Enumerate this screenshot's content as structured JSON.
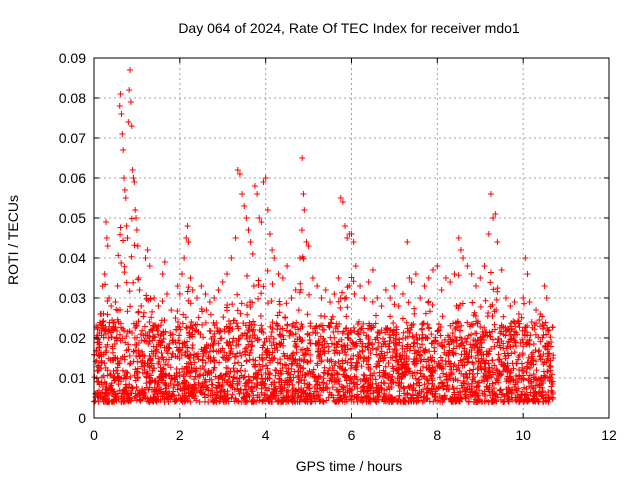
{
  "colors": {
    "series": "#ff0000",
    "grid": "#a0a0a0",
    "axis": "#000000",
    "background": "#ffffff"
  },
  "chart_data": {
    "type": "scatter",
    "title": "Day 064 of 2024, Rate Of TEC Index for receiver mdo1",
    "xlabel": "GPS time / hours",
    "ylabel": "ROTI / TECUs",
    "xlim": [
      0,
      12
    ],
    "ylim": [
      0,
      0.09
    ],
    "grid": true,
    "marker": "+",
    "x_ticks": [
      0,
      2,
      4,
      6,
      8,
      10,
      12
    ],
    "x_tick_labels": [
      "0",
      "2",
      "4",
      "6",
      "8",
      "10",
      "12"
    ],
    "y_ticks": [
      0,
      0.01,
      0.02,
      0.03,
      0.04,
      0.05,
      0.06,
      0.07,
      0.08,
      0.09
    ],
    "y_tick_labels": [
      "0",
      "0.01",
      "0.02",
      "0.03",
      "0.04",
      "0.05",
      "0.06",
      "0.07",
      "0.08",
      "0.09"
    ],
    "series": [
      {
        "name": "ROTI",
        "points": [
          [
            0.05,
            0.023
          ],
          [
            0.1,
            0.019
          ],
          [
            0.15,
            0.026
          ],
          [
            0.2,
            0.033
          ],
          [
            0.25,
            0.036
          ],
          [
            0.28,
            0.049
          ],
          [
            0.3,
            0.045
          ],
          [
            0.32,
            0.043
          ],
          [
            0.35,
            0.03
          ],
          [
            0.4,
            0.028
          ],
          [
            0.45,
            0.022
          ],
          [
            0.5,
            0.029
          ],
          [
            0.55,
            0.033
          ],
          [
            0.6,
            0.078
          ],
          [
            0.62,
            0.081
          ],
          [
            0.64,
            0.076
          ],
          [
            0.66,
            0.071
          ],
          [
            0.68,
            0.067
          ],
          [
            0.7,
            0.06
          ],
          [
            0.72,
            0.057
          ],
          [
            0.74,
            0.055
          ],
          [
            0.76,
            0.048
          ],
          [
            0.78,
            0.045
          ],
          [
            0.8,
            0.074
          ],
          [
            0.82,
            0.082
          ],
          [
            0.84,
            0.087
          ],
          [
            0.86,
            0.079
          ],
          [
            0.88,
            0.073
          ],
          [
            0.9,
            0.062
          ],
          [
            0.92,
            0.06
          ],
          [
            0.94,
            0.059
          ],
          [
            0.96,
            0.052
          ],
          [
            0.98,
            0.05
          ],
          [
            1.0,
            0.047
          ],
          [
            1.02,
            0.043
          ],
          [
            1.04,
            0.035
          ],
          [
            1.06,
            0.032
          ],
          [
            1.1,
            0.028
          ],
          [
            1.2,
            0.04
          ],
          [
            1.25,
            0.042
          ],
          [
            1.3,
            0.038
          ],
          [
            1.4,
            0.03
          ],
          [
            1.5,
            0.028
          ],
          [
            1.6,
            0.036
          ],
          [
            1.65,
            0.039
          ],
          [
            1.7,
            0.031
          ],
          [
            1.8,
            0.027
          ],
          [
            1.9,
            0.025
          ],
          [
            1.95,
            0.033
          ],
          [
            2.0,
            0.031
          ],
          [
            2.05,
            0.036
          ],
          [
            2.1,
            0.04
          ],
          [
            2.15,
            0.045
          ],
          [
            2.18,
            0.048
          ],
          [
            2.2,
            0.044
          ],
          [
            2.25,
            0.035
          ],
          [
            2.3,
            0.032
          ],
          [
            2.4,
            0.03
          ],
          [
            2.5,
            0.033
          ],
          [
            2.6,
            0.031
          ],
          [
            2.7,
            0.029
          ],
          [
            2.8,
            0.03
          ],
          [
            2.9,
            0.032
          ],
          [
            3.0,
            0.034
          ],
          [
            3.1,
            0.036
          ],
          [
            3.2,
            0.04
          ],
          [
            3.3,
            0.045
          ],
          [
            3.35,
            0.062
          ],
          [
            3.4,
            0.061
          ],
          [
            3.45,
            0.056
          ],
          [
            3.5,
            0.053
          ],
          [
            3.55,
            0.05
          ],
          [
            3.6,
            0.047
          ],
          [
            3.65,
            0.044
          ],
          [
            3.7,
            0.041
          ],
          [
            3.75,
            0.058
          ],
          [
            3.8,
            0.056
          ],
          [
            3.85,
            0.05
          ],
          [
            3.9,
            0.049
          ],
          [
            3.95,
            0.059
          ],
          [
            4.0,
            0.06
          ],
          [
            4.05,
            0.052
          ],
          [
            4.1,
            0.046
          ],
          [
            4.15,
            0.042
          ],
          [
            4.2,
            0.04
          ],
          [
            4.3,
            0.036
          ],
          [
            4.4,
            0.035
          ],
          [
            4.5,
            0.038
          ],
          [
            4.6,
            0.03
          ],
          [
            4.7,
            0.032
          ],
          [
            4.8,
            0.04
          ],
          [
            4.85,
            0.065
          ],
          [
            4.88,
            0.056
          ],
          [
            4.9,
            0.052
          ],
          [
            4.95,
            0.044
          ],
          [
            5.0,
            0.043
          ],
          [
            5.1,
            0.035
          ],
          [
            5.2,
            0.033
          ],
          [
            5.3,
            0.03
          ],
          [
            5.4,
            0.032
          ],
          [
            5.5,
            0.029
          ],
          [
            5.6,
            0.031
          ],
          [
            5.7,
            0.035
          ],
          [
            5.75,
            0.055
          ],
          [
            5.8,
            0.054
          ],
          [
            5.85,
            0.048
          ],
          [
            5.9,
            0.045
          ],
          [
            5.95,
            0.046
          ],
          [
            6.0,
            0.046
          ],
          [
            6.05,
            0.044
          ],
          [
            6.1,
            0.038
          ],
          [
            6.2,
            0.033
          ],
          [
            6.3,
            0.03
          ],
          [
            6.4,
            0.034
          ],
          [
            6.5,
            0.037
          ],
          [
            6.6,
            0.03
          ],
          [
            6.7,
            0.028
          ],
          [
            6.8,
            0.032
          ],
          [
            6.9,
            0.03
          ],
          [
            7.0,
            0.033
          ],
          [
            7.1,
            0.028
          ],
          [
            7.2,
            0.031
          ],
          [
            7.3,
            0.044
          ],
          [
            7.35,
            0.035
          ],
          [
            7.4,
            0.034
          ],
          [
            7.5,
            0.036
          ],
          [
            7.6,
            0.03
          ],
          [
            7.7,
            0.033
          ],
          [
            7.8,
            0.035
          ],
          [
            7.9,
            0.037
          ],
          [
            8.0,
            0.038
          ],
          [
            8.1,
            0.032
          ],
          [
            8.2,
            0.035
          ],
          [
            8.3,
            0.034
          ],
          [
            8.4,
            0.036
          ],
          [
            8.5,
            0.045
          ],
          [
            8.55,
            0.042
          ],
          [
            8.6,
            0.04
          ],
          [
            8.7,
            0.038
          ],
          [
            8.8,
            0.036
          ],
          [
            8.9,
            0.033
          ],
          [
            9.0,
            0.035
          ],
          [
            9.1,
            0.038
          ],
          [
            9.2,
            0.046
          ],
          [
            9.25,
            0.056
          ],
          [
            9.3,
            0.05
          ],
          [
            9.35,
            0.051
          ],
          [
            9.4,
            0.044
          ],
          [
            9.5,
            0.037
          ],
          [
            9.6,
            0.03
          ],
          [
            9.7,
            0.028
          ],
          [
            9.8,
            0.029
          ],
          [
            9.9,
            0.026
          ],
          [
            10.0,
            0.03
          ],
          [
            10.05,
            0.04
          ],
          [
            10.1,
            0.036
          ],
          [
            10.15,
            0.029
          ],
          [
            10.2,
            0.024
          ],
          [
            10.3,
            0.027
          ],
          [
            10.4,
            0.026
          ],
          [
            10.5,
            0.033
          ],
          [
            10.55,
            0.03
          ],
          [
            10.6,
            0.022
          ],
          [
            10.65,
            0.019
          ],
          [
            10.7,
            0.015
          ]
        ],
        "dense_band": {
          "x_range": [
            0.0,
            10.7
          ],
          "typical_min": 0.004,
          "typical_max": 0.024,
          "median": 0.011,
          "count": 3200
        }
      }
    ]
  }
}
